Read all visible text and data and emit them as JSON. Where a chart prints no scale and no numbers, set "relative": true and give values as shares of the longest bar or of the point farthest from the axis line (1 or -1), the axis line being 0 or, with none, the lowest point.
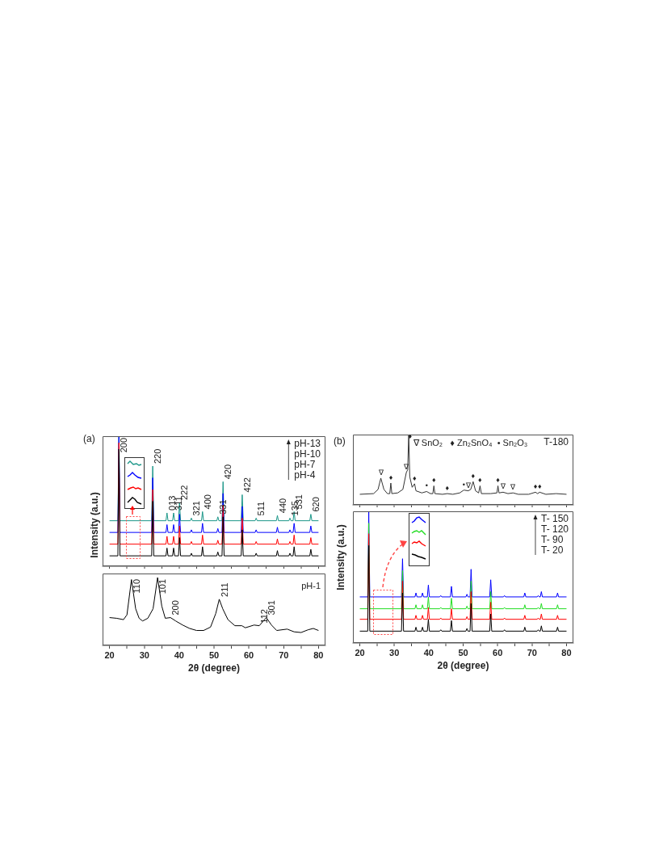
{
  "chart_data": [
    {
      "type": "line",
      "title": "(a)",
      "ylabel": "Intensity (a.u.)",
      "relative": true,
      "tick_labels": false,
      "xlim": [
        18,
        82
      ],
      "xticks": [
        20,
        {
          "value": 25,
          "label": null
        },
        30,
        {
          "value": 35,
          "label": null
        },
        40,
        {
          "value": 45,
          "label": null
        },
        50,
        {
          "value": 55,
          "label": null
        },
        60,
        {
          "value": 65,
          "label": null
        },
        70,
        {
          "value": 75,
          "label": null
        },
        80
      ],
      "x": [
        20,
        22.4,
        22.7,
        23.0,
        32.1,
        32.4,
        32.7,
        36.2,
        36.5,
        36.8,
        38.1,
        38.4,
        38.7,
        39.8,
        40.1,
        40.4,
        43.2,
        43.5,
        43.8,
        46.4,
        46.7,
        47.0,
        50.8,
        51.1,
        51.4,
        52.3,
        52.6,
        52.9,
        57.8,
        58.1,
        58.4,
        61.8,
        62.1,
        62.4,
        67.9,
        68.2,
        68.5,
        71.5,
        71.8,
        72.1,
        72.7,
        73.0,
        73.3,
        77.5,
        77.8,
        78.1,
        80
      ],
      "series": [
        {
          "color": "#000000",
          "values": [
            0.08,
            0.08,
            0.9,
            0.08,
            0.08,
            0.5,
            0.08,
            0.08,
            0.14,
            0.08,
            0.08,
            0.14,
            0.08,
            0.08,
            0.22,
            0.08,
            0.08,
            0.1,
            0.08,
            0.08,
            0.15,
            0.08,
            0.08,
            0.11,
            0.08,
            0.08,
            0.38,
            0.08,
            0.08,
            0.28,
            0.08,
            0.08,
            0.1,
            0.08,
            0.08,
            0.12,
            0.08,
            0.08,
            0.1,
            0.08,
            0.08,
            0.15,
            0.08,
            0.08,
            0.13,
            0.08,
            0.08
          ]
        },
        {
          "color": "#ff0000",
          "values": [
            0.17,
            0.17,
            0.95,
            0.17,
            0.17,
            0.59,
            0.17,
            0.17,
            0.23,
            0.17,
            0.17,
            0.23,
            0.17,
            0.17,
            0.31,
            0.17,
            0.17,
            0.19,
            0.17,
            0.17,
            0.24,
            0.17,
            0.17,
            0.2,
            0.17,
            0.17,
            0.47,
            0.17,
            0.17,
            0.37,
            0.17,
            0.17,
            0.19,
            0.17,
            0.17,
            0.21,
            0.17,
            0.17,
            0.19,
            0.17,
            0.17,
            0.24,
            0.17,
            0.17,
            0.22,
            0.17,
            0.17
          ]
        },
        {
          "color": "#0000ff",
          "values": [
            0.26,
            0.26,
            1.0,
            0.26,
            0.26,
            0.68,
            0.26,
            0.26,
            0.32,
            0.26,
            0.26,
            0.32,
            0.26,
            0.26,
            0.4,
            0.26,
            0.26,
            0.28,
            0.26,
            0.26,
            0.33,
            0.26,
            0.26,
            0.29,
            0.26,
            0.26,
            0.56,
            0.26,
            0.26,
            0.46,
            0.26,
            0.26,
            0.28,
            0.26,
            0.26,
            0.3,
            0.26,
            0.26,
            0.28,
            0.26,
            0.26,
            0.33,
            0.26,
            0.26,
            0.31,
            0.26,
            0.26
          ]
        },
        {
          "color": "#1a9688",
          "values": [
            0.35,
            0.35,
            1.0,
            0.35,
            0.35,
            0.77,
            0.35,
            0.35,
            0.41,
            0.35,
            0.35,
            0.41,
            0.35,
            0.35,
            0.49,
            0.35,
            0.35,
            0.37,
            0.35,
            0.35,
            0.42,
            0.35,
            0.35,
            0.38,
            0.35,
            0.35,
            0.65,
            0.35,
            0.35,
            0.55,
            0.35,
            0.35,
            0.37,
            0.35,
            0.35,
            0.39,
            0.35,
            0.35,
            0.37,
            0.35,
            0.35,
            0.42,
            0.35,
            0.35,
            0.4,
            0.35,
            0.35
          ]
        }
      ],
      "annotations": [
        "pH-13\npH-10\npH-7\npH-4",
        {
          "text": "200",
          "x": 22.7,
          "y": 1.0
        },
        {
          "text": "220",
          "x": 32.4,
          "y": 0.77
        },
        {
          "text": "013",
          "x": 36.5,
          "y": 0.41
        },
        {
          "text": "311",
          "x": 38.4,
          "y": 0.41
        },
        {
          "text": "222",
          "x": 40.1,
          "y": 0.49
        },
        {
          "text": "321",
          "x": 43.5,
          "y": 0.37
        },
        {
          "text": "400",
          "x": 46.7,
          "y": 0.42
        },
        {
          "text": "331",
          "x": 51.1,
          "y": 0.38
        },
        {
          "text": "420",
          "x": 52.6,
          "y": 0.65
        },
        {
          "text": "422",
          "x": 58.1,
          "y": 0.55
        },
        {
          "text": "511",
          "x": 62.1,
          "y": 0.37
        },
        {
          "text": "440",
          "x": 68.2,
          "y": 0.39
        },
        {
          "text": "135",
          "x": 71.8,
          "y": 0.37
        },
        {
          "text": "531",
          "x": 73.0,
          "y": 0.42
        },
        {
          "text": "620",
          "x": 77.8,
          "y": 0.4
        }
      ]
    },
    {
      "type": "line",
      "xlabel": "2θ (degree)",
      "relative": true,
      "xlim": [
        18,
        82
      ],
      "xticks": [
        20,
        {
          "value": 25,
          "label": null
        },
        30,
        {
          "value": 35,
          "label": null
        },
        40,
        {
          "value": 45,
          "label": null
        },
        50,
        {
          "value": 55,
          "label": null
        },
        60,
        {
          "value": 65,
          "label": null
        },
        70,
        {
          "value": 75,
          "label": null
        },
        80
      ],
      "x": [
        20,
        22,
        24,
        25,
        26.3,
        27.5,
        28.5,
        29.5,
        31,
        32.5,
        33.8,
        35,
        36,
        37.5,
        39,
        41,
        43,
        45,
        47,
        49,
        50.5,
        51.5,
        52.5,
        54,
        56,
        58,
        59,
        61.5,
        63,
        65,
        66.5,
        68,
        71,
        73,
        75,
        77,
        78.5,
        80
      ],
      "series": [
        {
          "color": "#000000",
          "values": [
            0.41,
            0.4,
            0.38,
            0.45,
            0.97,
            0.54,
            0.4,
            0.36,
            0.4,
            0.54,
            1.0,
            0.58,
            0.4,
            0.41,
            0.36,
            0.3,
            0.25,
            0.22,
            0.22,
            0.27,
            0.47,
            0.68,
            0.54,
            0.38,
            0.29,
            0.29,
            0.26,
            0.3,
            0.29,
            0.41,
            0.3,
            0.22,
            0.24,
            0.2,
            0.19,
            0.23,
            0.25,
            0.22
          ]
        }
      ],
      "annotations": [
        "pH-1",
        {
          "text": "110",
          "x": 26.3,
          "y": 0.97
        },
        {
          "text": "101",
          "x": 33.8,
          "y": 1.0
        },
        {
          "text": "200",
          "x": 37.5,
          "y": 0.41
        },
        {
          "text": "211",
          "x": 51.5,
          "y": 0.68
        },
        {
          "text": "112",
          "x": 63,
          "y": 0.29
        },
        {
          "text": "301",
          "x": 65,
          "y": 0.41
        }
      ]
    },
    {
      "type": "line",
      "title": "(b)",
      "relative": true,
      "legend": "top right",
      "tick_labels": false,
      "xlim": [
        18,
        82
      ],
      "xticks": [
        20,
        {
          "value": 25,
          "label": null
        },
        30,
        {
          "value": 35,
          "label": null
        },
        40,
        {
          "value": 45,
          "label": null
        },
        50,
        {
          "value": 55,
          "label": null
        },
        60,
        {
          "value": 65,
          "label": null
        },
        70,
        {
          "value": 75,
          "label": null
        },
        80
      ],
      "x": [
        20,
        24,
        25.3,
        26.1,
        27,
        28,
        28.7,
        29.0,
        29.3,
        31,
        32.5,
        33.5,
        33.9,
        34.2,
        34.5,
        35.2,
        35.9,
        36.3,
        38,
        39.4,
        40.5,
        41.2,
        41.5,
        41.8,
        44,
        45.4,
        47,
        49,
        50.2,
        51.5,
        52.2,
        52.9,
        53.6,
        54.5,
        54.9,
        55.3,
        58,
        59.8,
        60.1,
        60.4,
        61.6,
        63,
        64.5,
        66,
        69,
        71,
        71.6,
        72.2,
        74,
        77,
        80
      ],
      "series": [
        {
          "name": "T-180",
          "color": "#333333",
          "values": [
            0.15,
            0.16,
            0.22,
            0.38,
            0.22,
            0.16,
            0.16,
            0.31,
            0.16,
            0.17,
            0.22,
            0.46,
            0.5,
            1.0,
            0.4,
            0.25,
            0.3,
            0.2,
            0.17,
            0.19,
            0.16,
            0.16,
            0.27,
            0.16,
            0.15,
            0.16,
            0.15,
            0.17,
            0.21,
            0.2,
            0.22,
            0.33,
            0.2,
            0.17,
            0.27,
            0.16,
            0.16,
            0.17,
            0.27,
            0.17,
            0.18,
            0.16,
            0.17,
            0.15,
            0.15,
            0.18,
            0.16,
            0.18,
            0.15,
            0.16,
            0.15
          ]
        }
      ],
      "annotations": [
        "∇ SnO₂   ♦ Zn₂SnO₄  • Sn₂O₃",
        {
          "text": "∇",
          "x": 26.1,
          "y": 0.38
        },
        {
          "text": "♦",
          "x": 29.0,
          "y": 0.31
        },
        {
          "text": "∇",
          "x": 33.5,
          "y": 0.46
        },
        {
          "text": "♦",
          "x": 34.6,
          "y": 0.9
        },
        {
          "text": "♦",
          "x": 35.9,
          "y": 0.3
        },
        {
          "text": "•",
          "x": 39.4,
          "y": 0.19
        },
        {
          "text": "♦",
          "x": 41.5,
          "y": 0.27
        },
        {
          "text": "♦",
          "x": 45.4,
          "y": 0.16
        },
        {
          "text": "•",
          "x": 50.2,
          "y": 0.21
        },
        {
          "text": "∇",
          "x": 51.5,
          "y": 0.2
        },
        {
          "text": "♦",
          "x": 52.9,
          "y": 0.33
        },
        {
          "text": "♦",
          "x": 54.9,
          "y": 0.27
        },
        {
          "text": "♦",
          "x": 60.1,
          "y": 0.27
        },
        {
          "text": "∇",
          "x": 61.6,
          "y": 0.18
        },
        {
          "text": "∇",
          "x": 64.5,
          "y": 0.17
        },
        {
          "text": "♦",
          "x": 71.0,
          "y": 0.18
        },
        {
          "text": "♦",
          "x": 72.2,
          "y": 0.18
        }
      ]
    },
    {
      "type": "line",
      "xlabel": "2θ (degree)",
      "ylabel": "Intensity (a.u.)",
      "relative": true,
      "annotations": [
        "T- 150\nT- 120\nT- 90\nT- 20"
      ],
      "xlim": [
        18,
        82
      ],
      "xticks": [
        20,
        {
          "value": 25,
          "label": null
        },
        30,
        {
          "value": 35,
          "label": null
        },
        40,
        {
          "value": 45,
          "label": null
        },
        50,
        {
          "value": 55,
          "label": null
        },
        60,
        {
          "value": 65,
          "label": null
        },
        70,
        {
          "value": 75,
          "label": null
        },
        80
      ],
      "x": [
        20,
        22.3,
        22.6,
        22.9,
        32.1,
        32.4,
        32.7,
        36.0,
        36.3,
        36.6,
        37.9,
        38.2,
        38.5,
        39.6,
        39.9,
        40.2,
        43.2,
        43.5,
        43.8,
        46.3,
        46.6,
        46.9,
        50.8,
        51.1,
        51.4,
        52.0,
        52.3,
        52.6,
        57.7,
        58.0,
        58.3,
        61.7,
        62.0,
        62.3,
        67.6,
        67.9,
        68.2,
        71.5,
        71.8,
        72.1,
        72.4,
        72.7,
        73.0,
        77.1,
        77.4,
        77.7,
        80
      ],
      "series": [
        {
          "color": "#000000",
          "values": [
            0.09,
            0.09,
            0.74,
            0.09,
            0.09,
            0.38,
            0.09,
            0.09,
            0.12,
            0.09,
            0.09,
            0.12,
            0.09,
            0.09,
            0.18,
            0.09,
            0.09,
            0.1,
            0.09,
            0.09,
            0.17,
            0.09,
            0.09,
            0.11,
            0.09,
            0.09,
            0.3,
            0.09,
            0.09,
            0.22,
            0.09,
            0.09,
            0.1,
            0.09,
            0.09,
            0.12,
            0.09,
            0.09,
            0.1,
            0.09,
            0.09,
            0.13,
            0.09,
            0.09,
            0.12,
            0.09,
            0.09
          ]
        },
        {
          "color": "#ff0000",
          "values": [
            0.18,
            0.18,
            0.83,
            0.18,
            0.18,
            0.47,
            0.18,
            0.18,
            0.21,
            0.18,
            0.18,
            0.21,
            0.18,
            0.18,
            0.27,
            0.18,
            0.18,
            0.19,
            0.18,
            0.18,
            0.26,
            0.18,
            0.18,
            0.2,
            0.18,
            0.18,
            0.39,
            0.18,
            0.18,
            0.31,
            0.18,
            0.18,
            0.19,
            0.18,
            0.18,
            0.21,
            0.18,
            0.18,
            0.19,
            0.18,
            0.18,
            0.22,
            0.18,
            0.18,
            0.21,
            0.18,
            0.18
          ]
        },
        {
          "color": "#22dd22",
          "values": [
            0.26,
            0.26,
            0.91,
            0.26,
            0.26,
            0.55,
            0.26,
            0.26,
            0.29,
            0.26,
            0.26,
            0.29,
            0.26,
            0.26,
            0.35,
            0.26,
            0.26,
            0.27,
            0.26,
            0.26,
            0.34,
            0.26,
            0.26,
            0.28,
            0.26,
            0.26,
            0.47,
            0.26,
            0.26,
            0.39,
            0.26,
            0.26,
            0.27,
            0.26,
            0.26,
            0.29,
            0.26,
            0.26,
            0.27,
            0.26,
            0.26,
            0.3,
            0.26,
            0.26,
            0.29,
            0.26,
            0.26
          ]
        },
        {
          "color": "#0000ff",
          "values": [
            0.35,
            0.35,
            1.0,
            0.35,
            0.35,
            0.64,
            0.35,
            0.35,
            0.38,
            0.35,
            0.35,
            0.38,
            0.35,
            0.35,
            0.44,
            0.35,
            0.35,
            0.36,
            0.35,
            0.35,
            0.43,
            0.35,
            0.35,
            0.37,
            0.35,
            0.35,
            0.56,
            0.35,
            0.35,
            0.48,
            0.35,
            0.35,
            0.36,
            0.35,
            0.35,
            0.38,
            0.35,
            0.35,
            0.36,
            0.35,
            0.35,
            0.39,
            0.35,
            0.35,
            0.38,
            0.35,
            0.35
          ]
        }
      ]
    }
  ]
}
